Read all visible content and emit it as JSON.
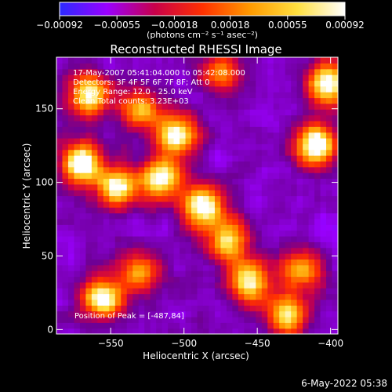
{
  "chart_data": {
    "type": "heatmap",
    "title": "Reconstructed RHESSI Image",
    "xlabel": "Heliocentric X (arcsec)",
    "ylabel": "Heliocentric Y (arcsec)",
    "xlim": [
      -587,
      -395
    ],
    "ylim": [
      -3,
      185
    ],
    "xticks": [
      -550,
      -500,
      -450,
      -400
    ],
    "xtick_labels": [
      "−550",
      "−500",
      "−450",
      "−400"
    ],
    "yticks": [
      0,
      50,
      100,
      150
    ],
    "ytick_labels": [
      "0",
      "50",
      "100",
      "150"
    ],
    "colorbar": {
      "unit_label": "(photons cm⁻² s⁻¹ asec⁻²)",
      "ticks": [
        -0.00092,
        -0.00055,
        -0.00018,
        0.00018,
        0.00055,
        0.00092
      ],
      "tick_labels": [
        "−0.00092",
        "−0.00055",
        "−0.00018",
        "0.00018",
        "0.00055",
        "0.00092"
      ],
      "colors": [
        "#2b2bff",
        "#9a00ff",
        "#c8004a",
        "#ff3000",
        "#ff9a00",
        "#ffe040",
        "#ffffff"
      ]
    },
    "annotations": [
      "17-May-2007 05:41:04.000 to 05:42:08.000",
      "Detectors: 3F 4F 5F 6F 7F 8F; Att 0",
      "Energy Range: 12.0 - 25.0 keV",
      "Clean     Total counts: 3.23E+03"
    ],
    "peak_label": "Position of Peak = [-487,84]",
    "peak": {
      "x": -487,
      "y": 84
    },
    "bright_sources": [
      {
        "x": -570,
        "y": 113,
        "level": 1.0
      },
      {
        "x": -545,
        "y": 97,
        "level": 0.85
      },
      {
        "x": -515,
        "y": 103,
        "level": 0.9
      },
      {
        "x": -487,
        "y": 84,
        "level": 1.0
      },
      {
        "x": -505,
        "y": 132,
        "level": 0.9
      },
      {
        "x": -565,
        "y": 160,
        "level": 0.9
      },
      {
        "x": -530,
        "y": 150,
        "level": 0.7
      },
      {
        "x": -555,
        "y": 22,
        "level": 0.95
      },
      {
        "x": -530,
        "y": 40,
        "level": 0.6
      },
      {
        "x": -470,
        "y": 60,
        "level": 0.8
      },
      {
        "x": -455,
        "y": 33,
        "level": 0.85
      },
      {
        "x": -420,
        "y": 40,
        "level": 0.7
      },
      {
        "x": -410,
        "y": 125,
        "level": 1.0
      },
      {
        "x": -402,
        "y": 168,
        "level": 0.95
      },
      {
        "x": -430,
        "y": 10,
        "level": 0.8
      },
      {
        "x": -475,
        "y": 175,
        "level": 0.6
      }
    ]
  },
  "footer": "6-May-2022 05:38"
}
